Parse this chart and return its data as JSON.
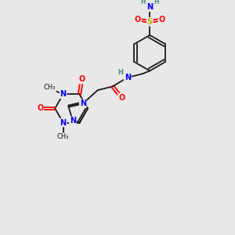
{
  "background_color": "#e8e8e8",
  "atom_colors": {
    "C": "#000000",
    "N": "#0000ff",
    "O": "#ff0000",
    "S": "#ccaa00",
    "H": "#4a8a8a"
  },
  "bond_color": "#1a1a1a",
  "figsize": [
    3.0,
    3.0
  ],
  "dpi": 100
}
